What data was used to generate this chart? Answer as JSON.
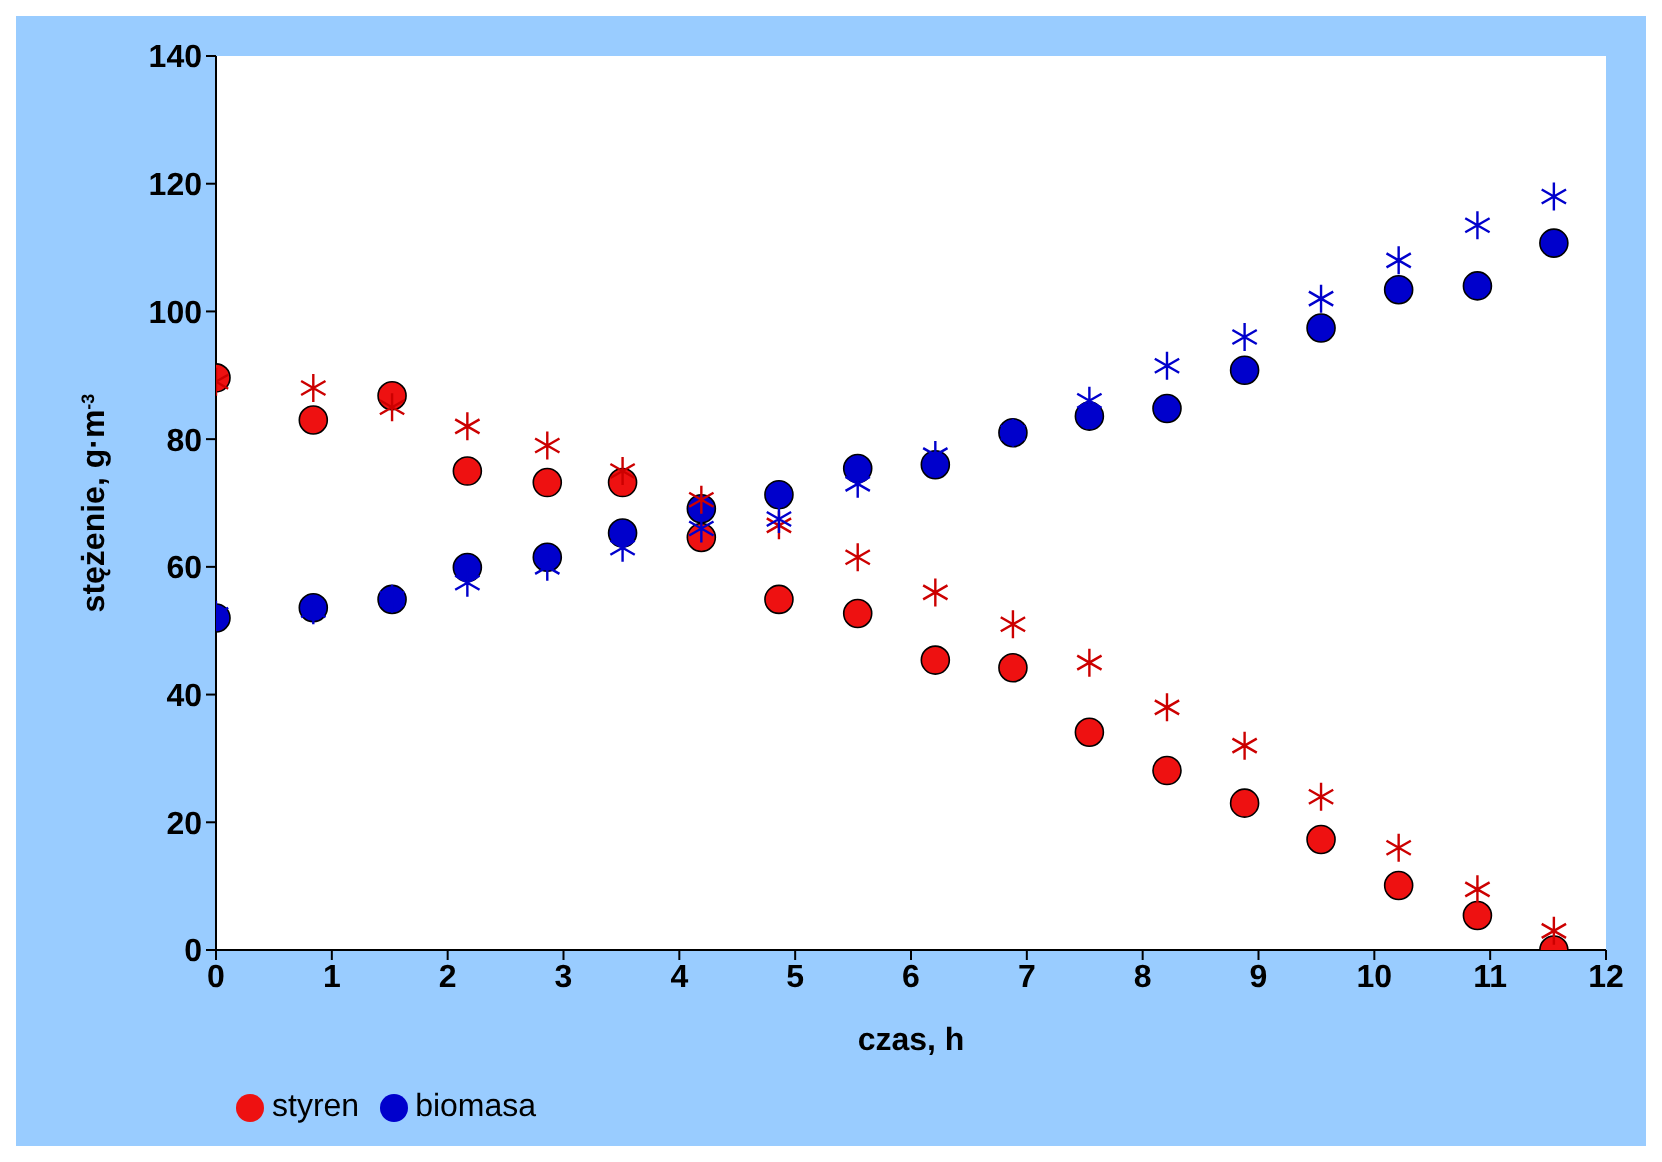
{
  "chart_data": {
    "type": "scatter",
    "xlabel": "czas, h",
    "ylabel": "stężenie, g·m$^{-3}$",
    "x": [
      0,
      0.84,
      1.52,
      2.17,
      2.86,
      3.51,
      4.19,
      4.86,
      5.54,
      6.21,
      6.88,
      7.54,
      8.21,
      8.88,
      9.54,
      10.21,
      10.89,
      11.55
    ],
    "series": [
      {
        "name": "styren",
        "color": "#ee1111",
        "marker": "circle",
        "values": [
          89.6,
          83,
          86.8,
          75,
          73.2,
          73.2,
          64.6,
          54.9,
          52.7,
          45.4,
          44.2,
          34.1,
          28.1,
          23,
          17.3,
          10.1,
          5.4,
          0
        ]
      },
      {
        "name": "biomasa",
        "color": "#0000cc",
        "marker": "circle",
        "values": [
          52,
          53.6,
          54.9,
          59.9,
          61.5,
          65.3,
          69.1,
          71.3,
          75.4,
          76,
          81,
          83.6,
          84.8,
          90.8,
          97.4,
          103.4,
          104,
          110.7
        ]
      },
      {
        "color": "#cc0000",
        "marker": "cross",
        "values": [
          89,
          88,
          85,
          82,
          79,
          75,
          70.5,
          66.5,
          61.5,
          56,
          51,
          45,
          38,
          32,
          24,
          16,
          9.5,
          3
        ]
      },
      {
        "color": "#0000cc",
        "marker": "cross",
        "values": [
          52.5,
          53.2,
          55,
          57.5,
          60,
          63,
          66,
          67.5,
          73,
          77.5,
          81,
          86,
          91.5,
          96,
          102,
          108,
          113.5,
          118
        ]
      }
    ],
    "xlim": [
      0,
      12
    ],
    "xticks": [
      0,
      1,
      2,
      3,
      4,
      5,
      6,
      7,
      8,
      9,
      10,
      11,
      12
    ],
    "ylim": [
      0,
      140
    ],
    "yticks": [
      0,
      20,
      40,
      60,
      80,
      100,
      120,
      140
    ],
    "grid": false,
    "legend": "bottom left"
  }
}
